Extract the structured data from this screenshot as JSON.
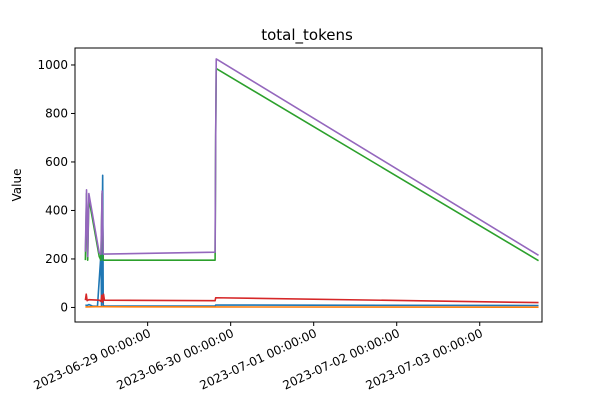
{
  "chart_data": {
    "type": "line",
    "title": "total_tokens",
    "xlabel": "",
    "ylabel": "Value",
    "x_type": "datetime",
    "xlim": [
      "2028-06-28T03:00:00",
      "2023-07-03T18:00:00"
    ],
    "ylim": [
      -60,
      1070
    ],
    "y_ticks": [
      0,
      200,
      400,
      600,
      800,
      1000
    ],
    "x_ticks": [
      "2023-06-29 00:00:00",
      "2023-06-30 00:00:00",
      "2023-07-01 00:00:00",
      "2023-07-02 00:00:00",
      "2023-07-03 00:00:00"
    ],
    "x_tick_values": [
      "2023-06-29T00:00:00",
      "2023-06-30T00:00:00",
      "2023-07-01T00:00:00",
      "2023-07-02T00:00:00",
      "2023-07-03T00:00:00"
    ],
    "grid": false,
    "legend": "none",
    "series": [
      {
        "color": "#1f77b4",
        "points": [
          [
            "2023-06-28T06:00:00",
            10
          ],
          [
            "2023-06-28T06:30:00",
            8
          ],
          [
            "2023-06-28T07:00:00",
            12
          ],
          [
            "2023-06-28T08:00:00",
            6
          ],
          [
            "2023-06-28T09:30:00",
            5
          ],
          [
            "2023-06-28T10:30:00",
            220
          ],
          [
            "2023-06-28T10:40:00",
            4
          ],
          [
            "2023-06-28T11:00:00",
            545
          ],
          [
            "2023-06-28T11:10:00",
            8
          ],
          [
            "2023-06-28T11:30:00",
            6
          ],
          [
            "2023-06-28T15:00:00",
            6
          ],
          [
            "2023-06-29T19:30:00",
            6
          ],
          [
            "2023-06-29T19:40:00",
            10
          ],
          [
            "2023-07-03T17:00:00",
            8
          ]
        ]
      },
      {
        "color": "#ff7f0e",
        "points": [
          [
            "2023-06-28T06:00:00",
            2
          ],
          [
            "2023-06-28T09:00:00",
            3
          ],
          [
            "2023-06-28T11:00:00",
            3
          ],
          [
            "2023-06-29T19:30:00",
            2
          ],
          [
            "2023-07-03T17:00:00",
            1
          ]
        ]
      },
      {
        "color": "#2ca02c",
        "points": [
          [
            "2023-06-28T06:00:00",
            195
          ],
          [
            "2023-06-28T06:20:00",
            470
          ],
          [
            "2023-06-28T06:40:00",
            195
          ],
          [
            "2023-06-28T07:00:00",
            450
          ],
          [
            "2023-06-28T10:00:00",
            210
          ],
          [
            "2023-06-28T10:30:00",
            195
          ],
          [
            "2023-06-28T10:50:00",
            470
          ],
          [
            "2023-06-28T11:10:00",
            195
          ],
          [
            "2023-06-28T11:30:00",
            195
          ],
          [
            "2023-06-29T19:30:00",
            195
          ],
          [
            "2023-06-29T19:40:00",
            700
          ],
          [
            "2023-06-29T19:50:00",
            985
          ],
          [
            "2023-07-03T17:00:00",
            193
          ]
        ]
      },
      {
        "color": "#d62728",
        "points": [
          [
            "2023-06-28T06:00:00",
            30
          ],
          [
            "2023-06-28T06:15:00",
            55
          ],
          [
            "2023-06-28T06:30:00",
            28
          ],
          [
            "2023-06-28T07:00:00",
            32
          ],
          [
            "2023-06-28T10:00:00",
            30
          ],
          [
            "2023-06-28T10:30:00",
            25
          ],
          [
            "2023-06-28T10:45:00",
            50
          ],
          [
            "2023-06-28T11:00:00",
            22
          ],
          [
            "2023-06-28T11:15:00",
            55
          ],
          [
            "2023-06-28T11:30:00",
            30
          ],
          [
            "2023-06-29T19:30:00",
            28
          ],
          [
            "2023-06-29T19:40:00",
            40
          ],
          [
            "2023-07-03T17:00:00",
            20
          ]
        ]
      },
      {
        "color": "#9467bd",
        "points": [
          [
            "2023-06-28T06:00:00",
            230
          ],
          [
            "2023-06-28T06:20:00",
            485
          ],
          [
            "2023-06-28T06:40:00",
            210
          ],
          [
            "2023-06-28T07:00:00",
            470
          ],
          [
            "2023-06-28T10:00:00",
            225
          ],
          [
            "2023-06-28T10:30:00",
            220
          ],
          [
            "2023-06-28T10:50:00",
            480
          ],
          [
            "2023-06-28T11:10:00",
            220
          ],
          [
            "2023-06-28T11:30:00",
            220
          ],
          [
            "2023-06-29T19:30:00",
            228
          ],
          [
            "2023-06-29T19:40:00",
            710
          ],
          [
            "2023-06-29T19:50:00",
            1025
          ],
          [
            "2023-07-03T17:00:00",
            215
          ]
        ]
      }
    ]
  }
}
